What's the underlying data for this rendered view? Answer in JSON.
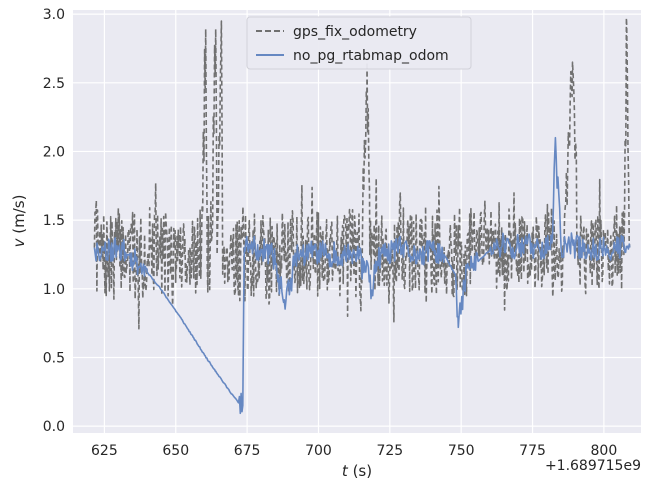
{
  "chart_data": {
    "type": "line",
    "xlabel": "t (s)",
    "xlabel_var": "t",
    "xlabel_unit": " (s)",
    "ylabel": "v (m/s)",
    "ylabel_var": "v",
    "ylabel_unit": " (m/s)",
    "x_offset_label": "+1.689715e9",
    "xlim": [
      614,
      813
    ],
    "ylim": [
      -0.05,
      3.03
    ],
    "xticks": [
      625,
      650,
      675,
      700,
      725,
      750,
      775,
      800
    ],
    "yticks": [
      0.0,
      0.5,
      1.0,
      1.5,
      2.0,
      2.5,
      3.0
    ],
    "grid": true,
    "legend_position": "top-center",
    "series": [
      {
        "name": "gps_fix_odometry",
        "style": "dashed",
        "color": "#707070",
        "noise_seed": 7,
        "noise_amp": 0.32,
        "dense_step": 0.22,
        "x": [
          621.5,
          623,
          627,
          630,
          634,
          638,
          641,
          644,
          646,
          648,
          650,
          651,
          653,
          655,
          657,
          659,
          660.5,
          661,
          662.5,
          664,
          664.5,
          666,
          666.5,
          668,
          670,
          672,
          674,
          676,
          679,
          682,
          686,
          688,
          690,
          692,
          696,
          700,
          704,
          708,
          712,
          715,
          717,
          718,
          720,
          724,
          728,
          732,
          736,
          740,
          744,
          747,
          749,
          751,
          755,
          760,
          765,
          770,
          775,
          778,
          781,
          783,
          786,
          789,
          791,
          795,
          800,
          804,
          807,
          808,
          809
        ],
        "y": [
          1.3,
          1.25,
          1.2,
          1.3,
          1.25,
          1.2,
          1.3,
          1.25,
          1.3,
          1.2,
          1.2,
          1.3,
          1.25,
          1.3,
          1.2,
          1.3,
          2.89,
          1.2,
          1.35,
          2.89,
          1.25,
          2.95,
          1.2,
          1.3,
          1.25,
          1.2,
          1.3,
          1.2,
          1.25,
          1.2,
          1.25,
          1.2,
          1.3,
          1.25,
          1.3,
          1.25,
          1.3,
          1.25,
          1.3,
          1.2,
          2.68,
          1.25,
          1.3,
          1.2,
          1.3,
          1.25,
          1.3,
          1.25,
          1.3,
          1.2,
          1.3,
          1.25,
          1.3,
          1.35,
          1.3,
          1.25,
          1.3,
          1.3,
          1.4,
          1.25,
          1.3,
          2.65,
          1.3,
          1.25,
          1.3,
          1.3,
          1.25,
          2.92,
          1.3
        ]
      },
      {
        "name": "no_pg_rtabmap_odom",
        "style": "solid",
        "color": "#6688c2",
        "noise_seed": 11,
        "noise_amp": 0.09,
        "dense_step": 0.3,
        "x": [
          621.5,
          623,
          625,
          627,
          630,
          633,
          636,
          640,
          644,
          648,
          652,
          656,
          660,
          664,
          668,
          672,
          673.5,
          674,
          676,
          680,
          684,
          686,
          688,
          690,
          692,
          696,
          700,
          704,
          708,
          712,
          716,
          719,
          720,
          724,
          728,
          732,
          736,
          740,
          744,
          748,
          749,
          752,
          756,
          760,
          764,
          768,
          772,
          776,
          780,
          782,
          783,
          785,
          788,
          792,
          796,
          800,
          804,
          808,
          809
        ],
        "y": [
          1.3,
          1.25,
          1.3,
          1.28,
          1.3,
          1.25,
          1.2,
          1.12,
          1.02,
          0.9,
          0.78,
          0.65,
          0.52,
          0.4,
          0.28,
          0.17,
          0.15,
          1.3,
          1.3,
          1.28,
          1.25,
          1.1,
          0.92,
          1.0,
          1.25,
          1.25,
          1.28,
          1.25,
          1.25,
          1.25,
          1.2,
          0.95,
          1.2,
          1.25,
          1.3,
          1.25,
          1.25,
          1.28,
          1.25,
          1.1,
          0.72,
          1.15,
          1.2,
          1.28,
          1.3,
          1.3,
          1.32,
          1.3,
          1.3,
          1.38,
          2.1,
          1.3,
          1.32,
          1.3,
          1.28,
          1.3,
          1.3,
          1.3,
          1.3
        ]
      }
    ]
  }
}
